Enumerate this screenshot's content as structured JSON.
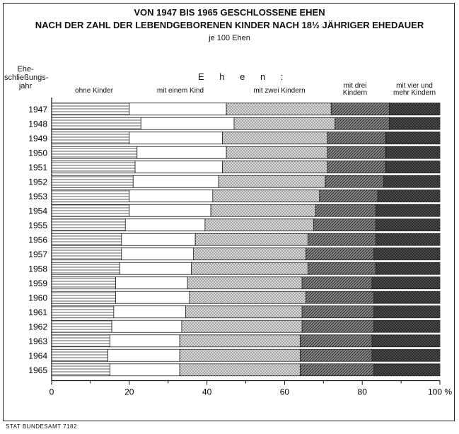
{
  "chart_data": {
    "type": "bar",
    "orientation": "horizontal",
    "stacked": true,
    "title": "VON 1947 BIS 1965 GESCHLOSSENE EHEN",
    "subtitle": "NACH DER ZAHL DER LEBENDGEBORENEN KINDER NACH 18½ JÄHRIGER EHEDAUER",
    "unit_note": "je 100 Ehen",
    "ylabel": "Ehe-schließungs-jahr",
    "group_label": "E h e n :",
    "categories": [
      "1947",
      "1948",
      "1949",
      "1950",
      "1951",
      "1952",
      "1953",
      "1954",
      "1955",
      "1956",
      "1957",
      "1958",
      "1959",
      "1960",
      "1961",
      "1962",
      "1963",
      "1964",
      "1965"
    ],
    "series": [
      {
        "name": "ohne Kinder",
        "values": [
          20,
          23,
          20,
          22,
          21.5,
          21,
          20,
          20,
          19,
          18,
          18,
          17.5,
          16.5,
          16.5,
          16,
          15.5,
          15,
          14.5,
          15
        ]
      },
      {
        "name": "mit einem Kind",
        "values": [
          25,
          24,
          24,
          23,
          22.5,
          22,
          21.5,
          21,
          20.5,
          19,
          18.5,
          18.5,
          18.5,
          19,
          18.5,
          18,
          18,
          18.5,
          18
        ]
      },
      {
        "name": "mit zwei Kindern",
        "values": [
          27,
          26,
          27,
          26,
          27,
          27.5,
          27.5,
          27,
          28,
          29,
          29,
          30,
          29.5,
          30,
          30,
          31,
          31,
          31,
          31
        ]
      },
      {
        "name": "mit drei Kindern",
        "values": [
          15,
          14,
          15,
          15,
          15,
          15,
          15,
          15.5,
          16,
          17.5,
          17.5,
          17.5,
          18,
          17.5,
          18.5,
          18.5,
          18.5,
          18.5,
          19
        ]
      },
      {
        "name": "mit vier und mehr Kindern",
        "values": [
          13,
          13,
          14,
          14,
          14,
          14.5,
          16,
          16.5,
          16.5,
          16.5,
          17,
          16.5,
          17.5,
          17,
          17,
          17,
          17.5,
          17.5,
          17
        ]
      }
    ],
    "xlim": [
      0,
      100
    ],
    "xticks": [
      "0",
      "20",
      "40",
      "60",
      "80",
      "100 %"
    ],
    "footer": "STAT BUNDESAMT 7182"
  },
  "series_colors": [
    "#ffffff",
    "#ffffff",
    "#c8c8c8",
    "#6e6e6e",
    "#2b2b2b"
  ],
  "series_patterns": [
    "hlines",
    "blank",
    "dots-light",
    "diagonal",
    "dots-dark"
  ]
}
